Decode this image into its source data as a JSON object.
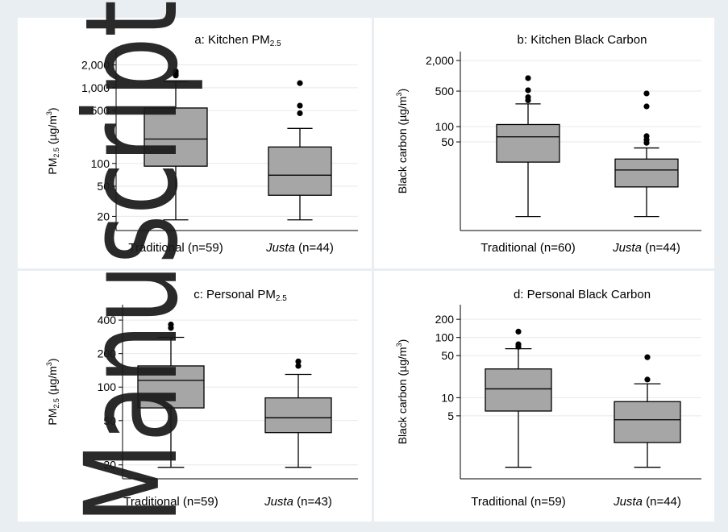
{
  "watermark": "Manuscript",
  "colors": {
    "outer_background": "#e9eef2",
    "panel_background": "#ffffff",
    "box_fill": "#a6a6a6",
    "grid": "#e3eaee",
    "ink": "#000000",
    "watermark": "#1a1a1a"
  },
  "chart_data": [
    {
      "type": "box",
      "title": "a: Kitchen PM",
      "title_subscript": "2.5",
      "ylabel": "PM",
      "ylabel_subscript": "2.5",
      "ylabel_unit": "(µg/m",
      "ylabel_unit_sup": "3",
      "ylabel_unit_close": ")",
      "yscale": "log",
      "ylim": [
        13,
        3000
      ],
      "yticks": [
        20,
        50,
        100,
        500,
        1000,
        2000
      ],
      "ytick_labels": [
        "20",
        "50",
        "100",
        "500",
        "1,000",
        "2,000"
      ],
      "grid": true,
      "categories": [
        {
          "label": "Traditional",
          "label_italic": false,
          "n_text": " (n=59)"
        },
        {
          "label": "Justa",
          "label_italic": true,
          "n_text": " (n=44)"
        }
      ],
      "boxes": [
        {
          "whisker_low": 18,
          "q1": 92,
          "median": 210,
          "q3": 540,
          "whisker_high": 1200,
          "outliers": [
            1450,
            1550,
            1650
          ]
        },
        {
          "whisker_low": 18,
          "q1": 38,
          "median": 70,
          "q3": 165,
          "whisker_high": 290,
          "outliers": [
            460,
            580,
            1150
          ]
        }
      ]
    },
    {
      "type": "box",
      "title": "b: Kitchen Black Carbon",
      "title_subscript": "",
      "ylabel": "Black carbon",
      "ylabel_subscript": "",
      "ylabel_unit": "(µg/m",
      "ylabel_unit_sup": "3",
      "ylabel_unit_close": ")",
      "yscale": "log",
      "ylim": [
        0.9,
        3000
      ],
      "yticks": [
        50,
        100,
        500,
        2000
      ],
      "ytick_labels": [
        "50",
        "100",
        "500",
        "2,000"
      ],
      "grid": true,
      "categories": [
        {
          "label": "Traditional",
          "label_italic": false,
          "n_text": " (n=60)"
        },
        {
          "label": "Justa",
          "label_italic": true,
          "n_text": " (n=44)"
        }
      ],
      "boxes": [
        {
          "whisker_low": 1.7,
          "q1": 20,
          "median": 63,
          "q3": 110,
          "whisker_high": 280,
          "outliers": [
            330,
            380,
            520,
            900
          ]
        },
        {
          "whisker_low": 1.7,
          "q1": 6.5,
          "median": 14,
          "q3": 23,
          "whisker_high": 38,
          "outliers": [
            48,
            55,
            65,
            250,
            450
          ]
        }
      ]
    },
    {
      "type": "box",
      "title": "c: Personal PM",
      "title_subscript": "2.5",
      "ylabel": "PM",
      "ylabel_subscript": "2.5",
      "ylabel_unit": "(µg/m",
      "ylabel_unit_sup": "3",
      "ylabel_unit_close": ")",
      "yscale": "log",
      "ylim": [
        15,
        550
      ],
      "yticks": [
        20,
        50,
        100,
        200,
        400
      ],
      "ytick_labels": [
        "20",
        "50",
        "100",
        "200",
        "400"
      ],
      "grid": true,
      "categories": [
        {
          "label": "Traditional",
          "label_italic": false,
          "n_text": " (n=59)"
        },
        {
          "label": "Justa",
          "label_italic": true,
          "n_text": " (n=43)"
        }
      ],
      "boxes": [
        {
          "whisker_low": 19,
          "q1": 65,
          "median": 115,
          "q3": 155,
          "whisker_high": 280,
          "outliers": [
            340,
            365
          ]
        },
        {
          "whisker_low": 19,
          "q1": 39,
          "median": 53,
          "q3": 80,
          "whisker_high": 130,
          "outliers": [
            155,
            170
          ]
        }
      ]
    },
    {
      "type": "box",
      "title": "d: Personal Black Carbon",
      "title_subscript": "",
      "ylabel": "Black carbon",
      "ylabel_subscript": "",
      "ylabel_unit": "(µg/m",
      "ylabel_unit_sup": "3",
      "ylabel_unit_close": ")",
      "yscale": "log",
      "ylim": [
        0.45,
        350
      ],
      "yticks": [
        5,
        10,
        50,
        100,
        200
      ],
      "ytick_labels": [
        "5",
        "10",
        "50",
        "100",
        "200"
      ],
      "grid": true,
      "categories": [
        {
          "label": "Traditional",
          "label_italic": false,
          "n_text": " (n=59)"
        },
        {
          "label": "Justa",
          "label_italic": true,
          "n_text": " (n=44)"
        }
      ],
      "boxes": [
        {
          "whisker_low": 0.7,
          "q1": 6,
          "median": 14,
          "q3": 30,
          "whisker_high": 65,
          "outliers": [
            70,
            77,
            125
          ]
        },
        {
          "whisker_low": 0.7,
          "q1": 1.8,
          "median": 4.3,
          "q3": 8.6,
          "whisker_high": 17,
          "outliers": [
            20,
            47
          ]
        }
      ]
    }
  ]
}
